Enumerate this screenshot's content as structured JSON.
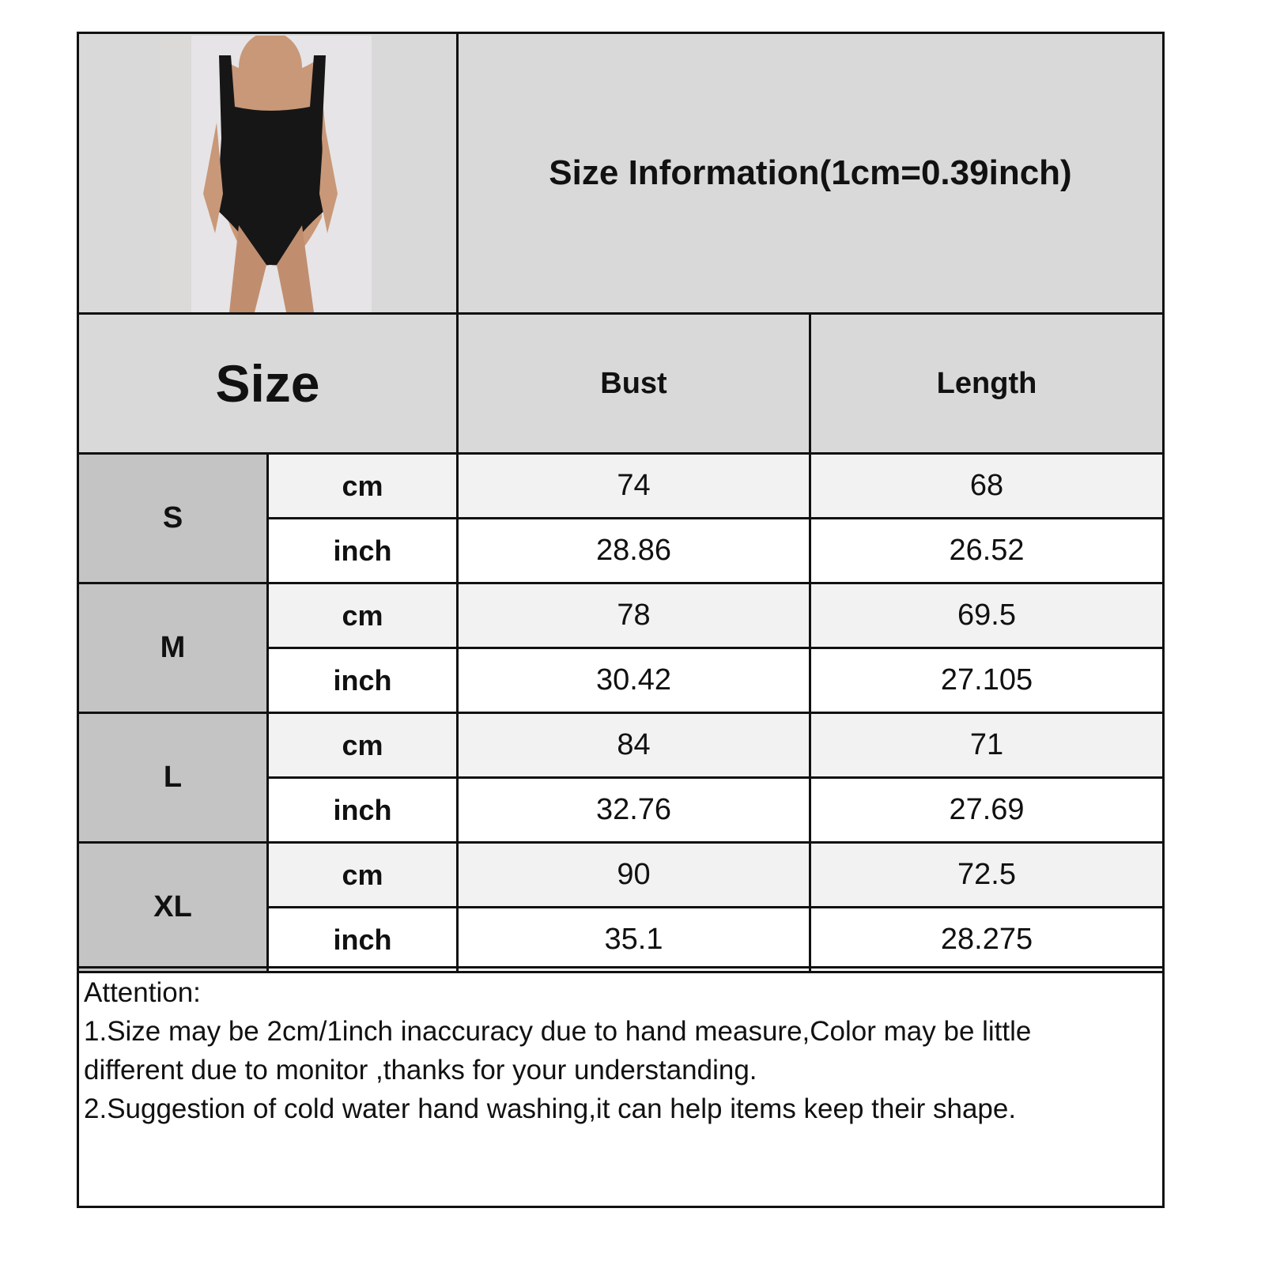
{
  "title": "Size Information(1cm=0.39inch)",
  "header": {
    "size": "Size",
    "bust": "Bust",
    "length": "Length"
  },
  "rows": [
    {
      "size": "S",
      "cm": {
        "unit": "cm",
        "bust": "74",
        "length": "68"
      },
      "inch": {
        "unit": "inch",
        "bust": "28.86",
        "length": "26.52"
      }
    },
    {
      "size": "M",
      "cm": {
        "unit": "cm",
        "bust": "78",
        "length": "69.5"
      },
      "inch": {
        "unit": "inch",
        "bust": "30.42",
        "length": "27.105"
      }
    },
    {
      "size": "L",
      "cm": {
        "unit": "cm",
        "bust": "84",
        "length": "71"
      },
      "inch": {
        "unit": "inch",
        "bust": "32.76",
        "length": "27.69"
      }
    },
    {
      "size": "XL",
      "cm": {
        "unit": "cm",
        "bust": "90",
        "length": "72.5"
      },
      "inch": {
        "unit": "inch",
        "bust": "35.1",
        "length": "28.275"
      }
    }
  ],
  "notes": {
    "heading": "Attention:",
    "line1": "1.Size may be 2cm/1inch inaccuracy due to hand measure,Color may be little",
    "line2": "different due to monitor ,thanks for your understanding.",
    "line3": "2.Suggestion of cold water hand washing,it can help items keep their shape."
  },
  "colors": {
    "header_bg": "#d9d9d9",
    "size_bg": "#c4c4c4",
    "cm_bg": "#f2f2f2",
    "inch_bg": "#ffffff",
    "border": "#111111"
  }
}
